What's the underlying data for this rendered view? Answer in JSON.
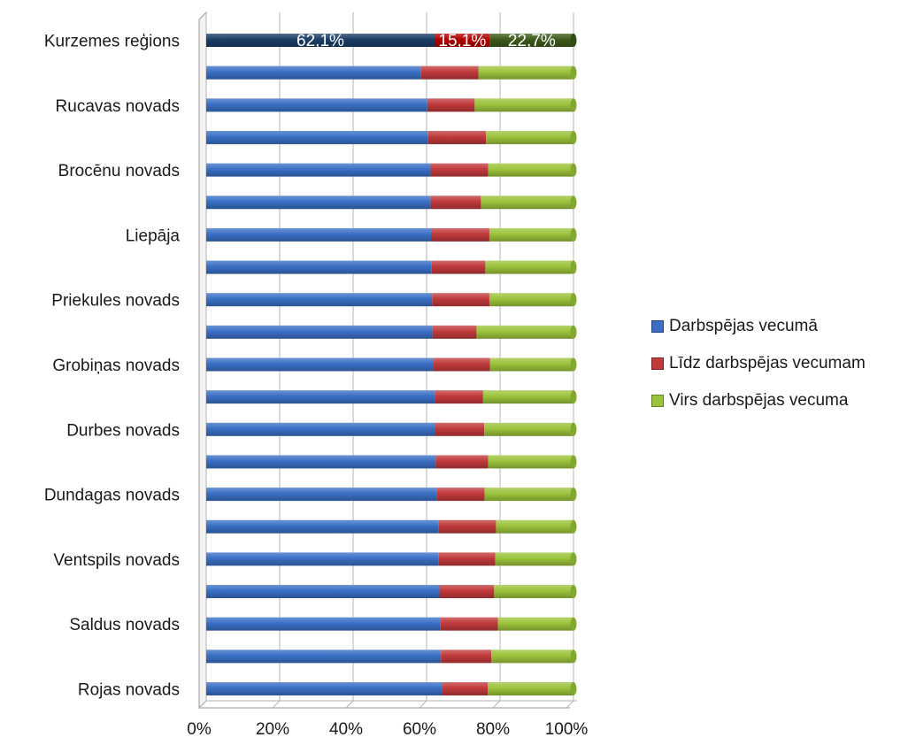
{
  "chart_data": {
    "type": "bar",
    "orientation": "horizontal",
    "stacked": "percent",
    "categories": [
      "Kurzemes reģions",
      "",
      "Rucavas novads",
      "",
      "Brocēnu novads",
      "",
      "Liepāja",
      "",
      "Priekules novads",
      "",
      "Grobiņas novads",
      "",
      "Durbes novads",
      "",
      "Dundagas novads",
      "",
      "Ventspils novads",
      "",
      "Saldus novads",
      "",
      "Rojas novads"
    ],
    "series": [
      {
        "name": "Darbspējas vecumā",
        "color": "#3a6fc4",
        "values": [
          62.1,
          58.5,
          60.2,
          60.4,
          61.1,
          61.1,
          61.2,
          61.4,
          61.5,
          61.6,
          61.7,
          62.2,
          62.3,
          62.5,
          62.7,
          63.2,
          63.3,
          63.5,
          63.8,
          63.9,
          64.2
        ]
      },
      {
        "name": "Līdz darbspējas vecumam",
        "color": "#c0393b",
        "values": [
          15.1,
          15.6,
          12.9,
          15.8,
          15.7,
          13.7,
          15.9,
          14.6,
          15.6,
          12.0,
          15.6,
          13.2,
          13.4,
          14.3,
          13.1,
          15.7,
          15.4,
          14.9,
          15.6,
          13.7,
          12.5
        ]
      },
      {
        "name": "Virs darbspējas vecuma",
        "color": "#9bc33b",
        "values": [
          22.7,
          25.9,
          26.9,
          23.8,
          23.2,
          25.2,
          22.9,
          24.0,
          22.9,
          26.4,
          22.7,
          24.6,
          24.3,
          23.2,
          24.2,
          21.1,
          21.3,
          21.6,
          20.6,
          22.4,
          23.3
        ]
      }
    ],
    "highlighted_category": "Kurzemes reģions",
    "highlight_colors": [
      "#1b3d66",
      "#b30000",
      "#3c5a1a"
    ],
    "data_labels": [
      "62,1%",
      "15,1%",
      "22,7%"
    ],
    "x_ticks": [
      "0%",
      "20%",
      "40%",
      "60%",
      "80%",
      "100%"
    ],
    "xlim": [
      0,
      100
    ],
    "legend_position": "right",
    "grid": "vertical"
  }
}
